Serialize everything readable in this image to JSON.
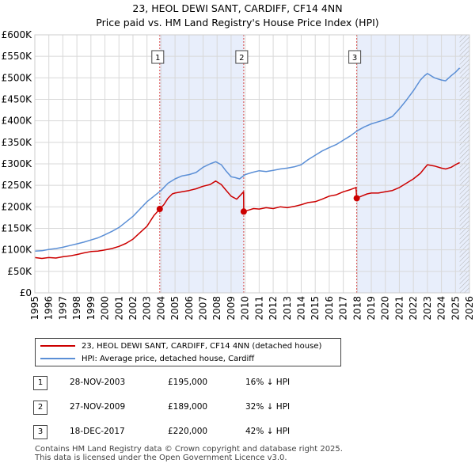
{
  "chart_data": {
    "type": "line",
    "title": "23, HEOL DEWI SANT, CARDIFF, CF14 4NN",
    "subtitle": "Price paid vs. HM Land Registry's House Price Index (HPI)",
    "xlabel": "",
    "ylabel": "",
    "xlim": [
      1995,
      2026
    ],
    "ylim": [
      0,
      600000
    ],
    "y_ticks": [
      0,
      50000,
      100000,
      150000,
      200000,
      250000,
      300000,
      350000,
      400000,
      450000,
      500000,
      550000,
      600000
    ],
    "y_tick_labels": [
      "£0",
      "£50K",
      "£100K",
      "£150K",
      "£200K",
      "£250K",
      "£300K",
      "£350K",
      "£400K",
      "£450K",
      "£500K",
      "£550K",
      "£600K"
    ],
    "x_ticks": [
      1995,
      1996,
      1997,
      1998,
      1999,
      2000,
      2001,
      2002,
      2003,
      2004,
      2005,
      2006,
      2007,
      2008,
      2009,
      2010,
      2011,
      2012,
      2013,
      2014,
      2015,
      2016,
      2017,
      2018,
      2019,
      2020,
      2021,
      2022,
      2023,
      2024,
      2025,
      2026
    ],
    "x_tick_labels": [
      "1995",
      "1996",
      "1997",
      "1998",
      "1999",
      "2000",
      "2001",
      "2002",
      "2003",
      "2004",
      "2005",
      "2006",
      "2007",
      "2008",
      "2009",
      "2010",
      "2011",
      "2012",
      "2013",
      "2014",
      "2015",
      "2016",
      "2017",
      "2018",
      "2019",
      "2020",
      "2021",
      "2022",
      "2023",
      "2024",
      "2025",
      "2026"
    ],
    "grid": true,
    "legend_position": "below",
    "colors": {
      "property": "#cc0000",
      "hpi": "#5b8fd6",
      "shade": "#e8eefb",
      "sale_line": "#cc0000"
    },
    "shaded_ranges": [
      [
        2003.91,
        2009.9
      ],
      [
        2017.96,
        2026
      ]
    ],
    "future_hatch_start": 2025.3,
    "series": [
      {
        "name": "23, HEOL DEWI SANT, CARDIFF, CF14 4NN (detached house)",
        "key": "property",
        "x": [
          1995.0,
          1995.5,
          1996.0,
          1996.5,
          1997.0,
          1997.5,
          1998.0,
          1998.5,
          1999.0,
          1999.5,
          2000.0,
          2000.5,
          2001.0,
          2001.5,
          2002.0,
          2002.5,
          2003.0,
          2003.5,
          2003.91,
          2004.2,
          2004.5,
          2004.8,
          2005.0,
          2005.5,
          2006.0,
          2006.5,
          2007.0,
          2007.5,
          2007.9,
          2008.3,
          2008.6,
          2009.0,
          2009.4,
          2009.6,
          2009.89,
          2009.9,
          2010.2,
          2010.6,
          2011.0,
          2011.5,
          2012.0,
          2012.5,
          2013.0,
          2013.5,
          2014.0,
          2014.5,
          2015.0,
          2015.5,
          2016.0,
          2016.5,
          2017.0,
          2017.5,
          2017.9,
          2017.96,
          2018.3,
          2018.7,
          2019.0,
          2019.5,
          2020.0,
          2020.5,
          2021.0,
          2021.5,
          2022.0,
          2022.5,
          2022.8,
          2023.0,
          2023.5,
          2024.0,
          2024.3,
          2024.7,
          2025.0,
          2025.3
        ],
        "values": [
          82000,
          80000,
          82000,
          81000,
          84000,
          86000,
          89000,
          93000,
          96000,
          97000,
          100000,
          103000,
          108000,
          115000,
          125000,
          140000,
          155000,
          180000,
          195000,
          205000,
          220000,
          230000,
          232000,
          235000,
          238000,
          242000,
          248000,
          252000,
          260000,
          252000,
          240000,
          225000,
          218000,
          225000,
          235000,
          189000,
          192000,
          196000,
          195000,
          198000,
          196000,
          200000,
          198000,
          201000,
          205000,
          210000,
          212000,
          218000,
          225000,
          228000,
          235000,
          240000,
          245000,
          220000,
          225000,
          230000,
          232000,
          232000,
          235000,
          238000,
          245000,
          255000,
          265000,
          278000,
          290000,
          298000,
          295000,
          290000,
          288000,
          292000,
          298000,
          303000
        ]
      },
      {
        "name": "HPI: Average price, detached house, Cardiff",
        "key": "hpi",
        "x": [
          1995.0,
          1995.5,
          1996.0,
          1996.5,
          1997.0,
          1997.5,
          1998.0,
          1998.5,
          1999.0,
          1999.5,
          2000.0,
          2000.5,
          2001.0,
          2001.5,
          2002.0,
          2002.5,
          2003.0,
          2003.5,
          2004.0,
          2004.5,
          2005.0,
          2005.5,
          2006.0,
          2006.5,
          2007.0,
          2007.5,
          2007.9,
          2008.3,
          2008.6,
          2009.0,
          2009.3,
          2009.6,
          2010.0,
          2010.5,
          2011.0,
          2011.5,
          2012.0,
          2012.5,
          2013.0,
          2013.5,
          2014.0,
          2014.5,
          2015.0,
          2015.5,
          2016.0,
          2016.5,
          2017.0,
          2017.5,
          2018.0,
          2018.5,
          2019.0,
          2019.5,
          2020.0,
          2020.5,
          2021.0,
          2021.5,
          2022.0,
          2022.5,
          2022.8,
          2023.0,
          2023.5,
          2024.0,
          2024.3,
          2024.7,
          2025.0,
          2025.3
        ],
        "values": [
          97000,
          98000,
          101000,
          103000,
          106000,
          110000,
          114000,
          118000,
          123000,
          128000,
          135000,
          143000,
          152000,
          165000,
          178000,
          195000,
          212000,
          225000,
          238000,
          255000,
          265000,
          272000,
          275000,
          280000,
          292000,
          300000,
          305000,
          298000,
          285000,
          270000,
          268000,
          265000,
          275000,
          280000,
          284000,
          282000,
          285000,
          288000,
          290000,
          293000,
          298000,
          310000,
          320000,
          330000,
          338000,
          345000,
          355000,
          365000,
          377000,
          386000,
          393000,
          398000,
          403000,
          410000,
          428000,
          448000,
          470000,
          495000,
          505000,
          510000,
          500000,
          495000,
          493000,
          505000,
          513000,
          523000
        ]
      }
    ],
    "sales": [
      {
        "num": "1",
        "x": 2003.91,
        "value": 195000
      },
      {
        "num": "2",
        "x": 2009.9,
        "value": 189000
      },
      {
        "num": "3",
        "x": 2017.96,
        "value": 220000
      }
    ]
  },
  "legend": {
    "property_label": "23, HEOL DEWI SANT, CARDIFF, CF14 4NN (detached house)",
    "hpi_label": "HPI: Average price, detached house, Cardiff"
  },
  "sales_table": [
    {
      "num": "1",
      "date": "28-NOV-2003",
      "price": "£195,000",
      "hpi": "16% ↓ HPI"
    },
    {
      "num": "2",
      "date": "27-NOV-2009",
      "price": "£189,000",
      "hpi": "32% ↓ HPI"
    },
    {
      "num": "3",
      "date": "18-DEC-2017",
      "price": "£220,000",
      "hpi": "42% ↓ HPI"
    }
  ],
  "footer": {
    "line1": "Contains HM Land Registry data © Crown copyright and database right 2025.",
    "line2": "This data is licensed under the Open Government Licence v3.0."
  }
}
